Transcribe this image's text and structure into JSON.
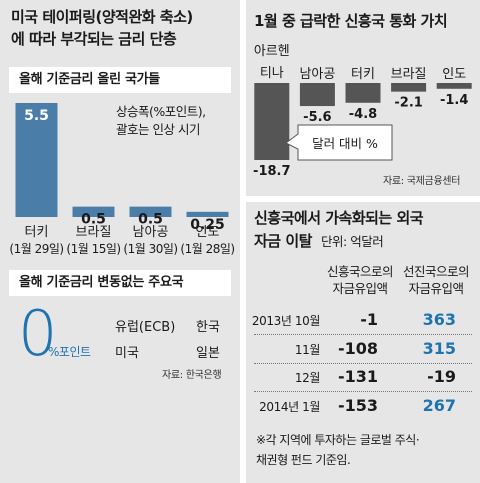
{
  "colors": {
    "bar_blue": "#4a7ea8",
    "bar_gray": "#555555",
    "accent_blue": "#1f74b0",
    "panel_bg": "#e6e6e7"
  },
  "left": {
    "title_lines": [
      "미국 테이퍼링(양적완화 축소)",
      "에 따라 부각되는 금리 단층"
    ],
    "band1": "올해 기준금리 올린 국가들",
    "legend_lines": [
      "상승폭(%포인트),",
      "괄호는 인상 시기"
    ],
    "band2": "올해 기준금리 변동없는 주요국",
    "zero_big": "0",
    "zero_unit": "%포인트",
    "countries": [
      "유럽(ECB)",
      "한국",
      "미국",
      "일본"
    ],
    "source": "자료: 한국은행"
  },
  "right_top": {
    "title": "1월 중 급락한 신흥국 통화 가치",
    "callout": "달러 대비 %",
    "source": "자료: 국제금융센터"
  },
  "right_bottom": {
    "title_line1": "신흥국에서 가속화되는 외국",
    "title_line2_bold": "자금 이탈",
    "title_line2_unit": "단위: 억달러",
    "col_a": [
      "신흥국으로의",
      "자금유입액"
    ],
    "col_b": [
      "선진국으로의",
      "자금유입액"
    ],
    "rows": [
      {
        "label": "2013년 10월",
        "a": "-1",
        "b": "363",
        "b_blue": true
      },
      {
        "label": "11월",
        "a": "-108",
        "b": "315",
        "b_blue": true
      },
      {
        "label": "12월",
        "a": "-131",
        "b": "-19",
        "b_blue": false
      },
      {
        "label": "2014년   1월",
        "a": "-153",
        "b": "267",
        "b_blue": true
      }
    ],
    "footnote": [
      "※각 지역에 투자하는 글로벌 주식·",
      "채권형 펀드 기준임."
    ]
  },
  "chart_data": [
    {
      "type": "bar",
      "title": "올해 기준금리 올린 국가들",
      "categories": [
        "터키",
        "브라질",
        "남아공",
        "인도"
      ],
      "dates": [
        "(1월 29일)",
        "(1월 15일)",
        "(1월 30일)",
        "(1월 28일)"
      ],
      "values": [
        5.5,
        0.5,
        0.5,
        0.25
      ],
      "value_labels": [
        "5.5",
        "0.5",
        "0.5",
        "0.25"
      ],
      "ylim": [
        0,
        5.5
      ]
    },
    {
      "type": "bar",
      "title": "1월 중 급락한 신흥국 통화 가치",
      "categories": [
        "아르헨티나",
        "남아공",
        "터키",
        "브라질",
        "인도"
      ],
      "label_lines": [
        [
          "아르헨",
          "티나"
        ],
        [
          "남아공"
        ],
        [
          "터키"
        ],
        [
          "브라질"
        ],
        [
          "인도"
        ]
      ],
      "values": [
        -18.7,
        -5.6,
        -4.8,
        -2.1,
        -1.4
      ],
      "value_labels": [
        "-18.7",
        "-5.6",
        "-4.8",
        "-2.1",
        "-1.4"
      ],
      "ylabel": "달러 대비 %",
      "ylim": [
        -18.7,
        0
      ]
    }
  ]
}
